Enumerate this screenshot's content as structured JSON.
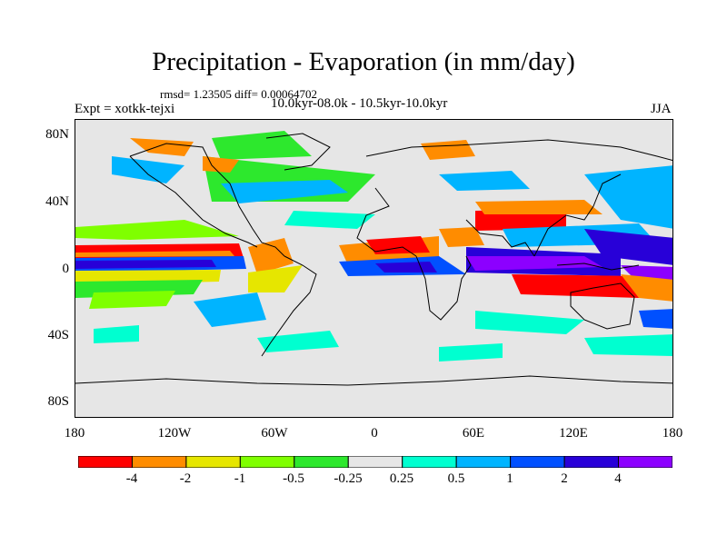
{
  "title": "Precipitation - Evaporation (in mm/day)",
  "stats": "rmsd= 1.23505 diff= 0.00064702",
  "experiment": "Expt = xotkk-tejxi",
  "period": "10.0kyr-08.0k - 10.5kyr-10.0kyr",
  "season": "JJA",
  "lat_labels": [
    "80N",
    "40N",
    "0",
    "40S",
    "80S"
  ],
  "lon_labels": [
    "180",
    "120W",
    "60W",
    "0",
    "60E",
    "120E",
    "180"
  ],
  "colorbar": {
    "labels": [
      "-4",
      "-2",
      "-1",
      "-0.5",
      "-0.25",
      "0.25",
      "0.5",
      "1",
      "2",
      "4"
    ],
    "colors": [
      "#ff0000",
      "#ff8c00",
      "#e6e600",
      "#7fff00",
      "#2de82d",
      "#e6e6e6",
      "#00ffd0",
      "#00b4ff",
      "#0050ff",
      "#2800d8",
      "#8c00ff"
    ]
  }
}
